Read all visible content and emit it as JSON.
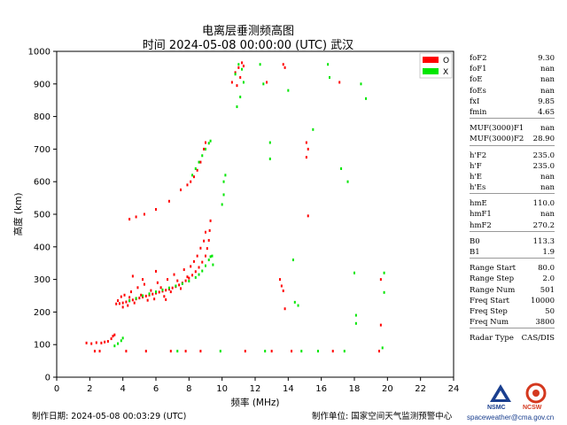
{
  "header": {
    "title_line1": "电离层垂测频高图",
    "title_line2": "时间 2024-05-08 00:00:00 (UTC)  武汉"
  },
  "chart_data": {
    "type": "scatter",
    "xlabel": "频率 (MHz)",
    "ylabel": "高度 (km)",
    "xlim": [
      0,
      24
    ],
    "ylim": [
      0,
      1000
    ],
    "xticks": [
      0,
      2,
      4,
      6,
      8,
      10,
      12,
      14,
      16,
      18,
      20,
      22,
      24
    ],
    "yticks": [
      0,
      100,
      200,
      300,
      400,
      500,
      600,
      700,
      800,
      900,
      1000
    ],
    "grid": false,
    "legend_position": "top-right",
    "series": [
      {
        "name": "O",
        "color": "#ff0000",
        "points": [
          [
            1.8,
            105
          ],
          [
            2.1,
            103
          ],
          [
            2.4,
            106
          ],
          [
            2.7,
            105
          ],
          [
            2.9,
            108
          ],
          [
            3.1,
            110
          ],
          [
            3.3,
            118
          ],
          [
            3.4,
            126
          ],
          [
            3.5,
            130
          ],
          [
            2.3,
            80
          ],
          [
            2.6,
            80
          ],
          [
            4.2,
            80
          ],
          [
            5.4,
            80
          ],
          [
            6.9,
            80
          ],
          [
            7.8,
            80
          ],
          [
            8.7,
            80
          ],
          [
            11.4,
            80
          ],
          [
            13.0,
            80
          ],
          [
            14.2,
            80
          ],
          [
            16.7,
            80
          ],
          [
            19.5,
            80
          ],
          [
            3.6,
            225
          ],
          [
            3.8,
            226
          ],
          [
            4.0,
            228
          ],
          [
            4.2,
            231
          ],
          [
            4.4,
            234
          ],
          [
            4.6,
            237
          ],
          [
            4.8,
            240
          ],
          [
            5.0,
            243
          ],
          [
            5.2,
            246
          ],
          [
            5.4,
            249
          ],
          [
            5.6,
            252
          ],
          [
            5.8,
            255
          ],
          [
            6.0,
            258
          ],
          [
            6.2,
            261
          ],
          [
            6.4,
            264
          ],
          [
            6.6,
            267
          ],
          [
            6.8,
            270
          ],
          [
            7.0,
            274
          ],
          [
            7.2,
            278
          ],
          [
            7.4,
            283
          ],
          [
            7.6,
            289
          ],
          [
            7.8,
            296
          ],
          [
            8.0,
            304
          ],
          [
            8.2,
            313
          ],
          [
            8.4,
            324
          ],
          [
            8.6,
            337
          ],
          [
            8.8,
            353
          ],
          [
            9.0,
            372
          ],
          [
            9.1,
            395
          ],
          [
            9.2,
            420
          ],
          [
            9.25,
            450
          ],
          [
            9.3,
            480
          ],
          [
            3.7,
            235
          ],
          [
            3.9,
            247
          ],
          [
            4.1,
            252
          ],
          [
            4.3,
            220
          ],
          [
            4.5,
            262
          ],
          [
            4.7,
            228
          ],
          [
            4.9,
            275
          ],
          [
            5.1,
            252
          ],
          [
            5.3,
            285
          ],
          [
            5.5,
            236
          ],
          [
            5.7,
            266
          ],
          [
            5.9,
            240
          ],
          [
            6.1,
            290
          ],
          [
            6.3,
            275
          ],
          [
            6.5,
            248
          ],
          [
            6.7,
            300
          ],
          [
            6.9,
            262
          ],
          [
            7.1,
            315
          ],
          [
            7.3,
            296
          ],
          [
            7.5,
            272
          ],
          [
            7.7,
            330
          ],
          [
            7.9,
            308
          ],
          [
            8.1,
            340
          ],
          [
            8.3,
            355
          ],
          [
            8.5,
            372
          ],
          [
            8.7,
            396
          ],
          [
            8.9,
            418
          ],
          [
            9.0,
            445
          ],
          [
            4.6,
            310
          ],
          [
            5.2,
            300
          ],
          [
            6.0,
            325
          ],
          [
            6.6,
            238
          ],
          [
            4.0,
            215
          ],
          [
            4.4,
            245
          ],
          [
            4.4,
            485
          ],
          [
            4.8,
            492
          ],
          [
            5.3,
            500
          ],
          [
            6.0,
            515
          ],
          [
            6.8,
            540
          ],
          [
            7.5,
            575
          ],
          [
            7.9,
            590
          ],
          [
            8.1,
            600
          ],
          [
            8.3,
            615
          ],
          [
            8.5,
            635
          ],
          [
            8.7,
            660
          ],
          [
            8.9,
            700
          ],
          [
            9.0,
            720
          ],
          [
            10.6,
            905
          ],
          [
            10.8,
            935
          ],
          [
            11.0,
            950
          ],
          [
            11.2,
            965
          ],
          [
            10.9,
            895
          ],
          [
            11.1,
            920
          ],
          [
            11.3,
            955
          ],
          [
            12.7,
            905
          ],
          [
            13.7,
            960
          ],
          [
            13.8,
            950
          ],
          [
            15.1,
            720
          ],
          [
            15.2,
            700
          ],
          [
            15.1,
            675
          ],
          [
            15.2,
            495
          ],
          [
            13.5,
            300
          ],
          [
            13.6,
            280
          ],
          [
            13.7,
            265
          ],
          [
            13.8,
            210
          ],
          [
            17.1,
            905
          ],
          [
            19.6,
            160
          ],
          [
            19.6,
            300
          ]
        ]
      },
      {
        "name": "X",
        "color": "#00e600",
        "points": [
          [
            3.5,
            96
          ],
          [
            3.7,
            103
          ],
          [
            3.9,
            112
          ],
          [
            4.0,
            120
          ],
          [
            4.4,
            235
          ],
          [
            4.8,
            242
          ],
          [
            5.2,
            250
          ],
          [
            5.6,
            256
          ],
          [
            6.0,
            262
          ],
          [
            6.4,
            268
          ],
          [
            6.8,
            274
          ],
          [
            7.2,
            280
          ],
          [
            7.6,
            287
          ],
          [
            8.0,
            295
          ],
          [
            8.4,
            306
          ],
          [
            8.6,
            315
          ],
          [
            8.8,
            326
          ],
          [
            9.0,
            342
          ],
          [
            9.2,
            360
          ],
          [
            9.4,
            372
          ],
          [
            9.45,
            345
          ],
          [
            9.3,
            370
          ],
          [
            10.0,
            530
          ],
          [
            10.1,
            560
          ],
          [
            10.1,
            600
          ],
          [
            10.2,
            620
          ],
          [
            8.2,
            620
          ],
          [
            8.4,
            640
          ],
          [
            8.6,
            660
          ],
          [
            8.8,
            680
          ],
          [
            9.0,
            700
          ],
          [
            9.2,
            718
          ],
          [
            9.3,
            725
          ],
          [
            10.8,
            930
          ],
          [
            11.0,
            960
          ],
          [
            11.2,
            945
          ],
          [
            11.3,
            905
          ],
          [
            11.1,
            860
          ],
          [
            10.9,
            830
          ],
          [
            12.3,
            960
          ],
          [
            12.5,
            900
          ],
          [
            14.0,
            880
          ],
          [
            12.9,
            720
          ],
          [
            12.9,
            670
          ],
          [
            14.3,
            360
          ],
          [
            14.4,
            230
          ],
          [
            14.6,
            220
          ],
          [
            16.4,
            960
          ],
          [
            16.5,
            920
          ],
          [
            15.5,
            760
          ],
          [
            17.2,
            640
          ],
          [
            17.6,
            600
          ],
          [
            18.4,
            900
          ],
          [
            18.7,
            855
          ],
          [
            18.0,
            320
          ],
          [
            18.1,
            190
          ],
          [
            18.1,
            165
          ],
          [
            19.8,
            320
          ],
          [
            19.8,
            260
          ],
          [
            19.7,
            90
          ],
          [
            12.6,
            80
          ],
          [
            14.8,
            80
          ],
          [
            15.8,
            80
          ],
          [
            17.4,
            80
          ],
          [
            9.9,
            80
          ],
          [
            7.3,
            80
          ]
        ]
      }
    ]
  },
  "params": {
    "group1": [
      {
        "label": "foF2",
        "value": "9.30"
      },
      {
        "label": "foF1",
        "value": "nan"
      },
      {
        "label": "foE",
        "value": "nan"
      },
      {
        "label": "foEs",
        "value": "nan"
      },
      {
        "label": "fxI",
        "value": "9.85"
      },
      {
        "label": "fmin",
        "value": "4.65"
      }
    ],
    "group2": [
      {
        "label": "MUF(3000)F1",
        "value": "nan"
      },
      {
        "label": "MUF(3000)F2",
        "value": "28.90"
      }
    ],
    "group3": [
      {
        "label": "h'F2",
        "value": "235.0"
      },
      {
        "label": "h'F",
        "value": "235.0"
      },
      {
        "label": "h'E",
        "value": "nan"
      },
      {
        "label": "h'Es",
        "value": "nan"
      }
    ],
    "group4": [
      {
        "label": "hmE",
        "value": "110.0"
      },
      {
        "label": "hmF1",
        "value": "nan"
      },
      {
        "label": "hmF2",
        "value": "270.2"
      }
    ],
    "group5": [
      {
        "label": "B0",
        "value": "113.3"
      },
      {
        "label": "B1",
        "value": "1.9"
      }
    ],
    "group6": [
      {
        "label": "Range Start",
        "value": "80.0"
      },
      {
        "label": "Range Step",
        "value": "2.0"
      },
      {
        "label": "Range Num",
        "value": "501"
      },
      {
        "label": "Freq Start",
        "value": "10000"
      },
      {
        "label": "Freq Step",
        "value": "50"
      },
      {
        "label": "Freq Num",
        "value": "3800"
      }
    ],
    "group7": [
      {
        "label": "Radar Type",
        "value": "CAS/DIS"
      }
    ]
  },
  "footer": {
    "date_text": "制作日期:  2024-05-08 00:03:29 (UTC)",
    "unit_text": "制作单位:  国家空间天气监测预警中心"
  },
  "logos": {
    "left_label": "NSMC",
    "right_label": "NCSW",
    "url": "spaceweather@cma.gov.cn",
    "left_color": "#1a3f8f",
    "right_color": "#d4381e"
  }
}
